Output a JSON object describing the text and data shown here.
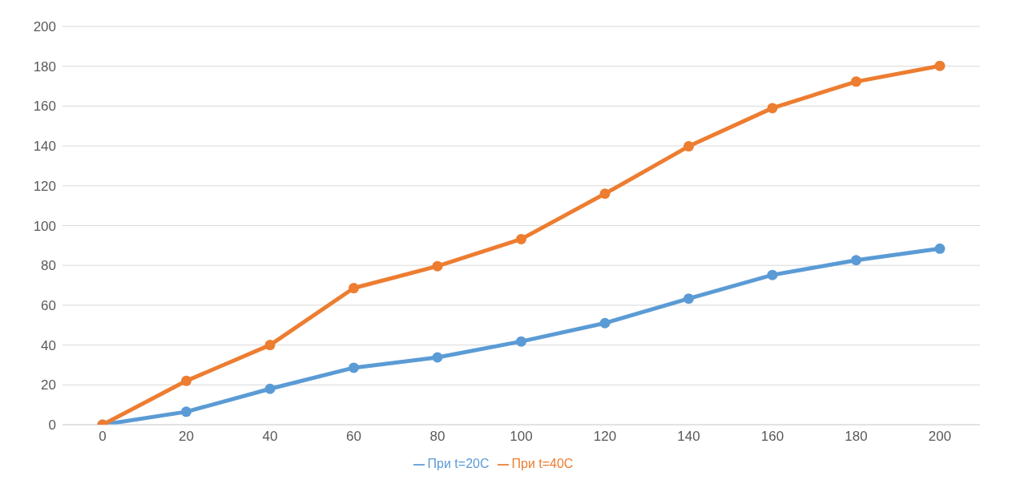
{
  "chart_data": {
    "type": "line",
    "categories": [
      "0",
      "20",
      "40",
      "60",
      "80",
      "100",
      "120",
      "140",
      "160",
      "180",
      "200"
    ],
    "series": [
      {
        "name": "При t=20C",
        "color": "#5b9bd5",
        "values": [
          0,
          6.5,
          18,
          28.6,
          33.8,
          41.8,
          51,
          63.3,
          75.2,
          82.6,
          88.4
        ]
      },
      {
        "name": "При t=40C",
        "color": "#ed7d31",
        "values": [
          0,
          22,
          40,
          68.6,
          79.6,
          93.2,
          116,
          139.8,
          159,
          172.3,
          180.2
        ]
      }
    ],
    "ylim": [
      0,
      200
    ],
    "yticks": [
      0,
      20,
      40,
      60,
      80,
      100,
      120,
      140,
      160,
      180,
      200
    ],
    "grid": "y",
    "legend": "bottom",
    "marker": "circle",
    "line_style": "solid"
  }
}
